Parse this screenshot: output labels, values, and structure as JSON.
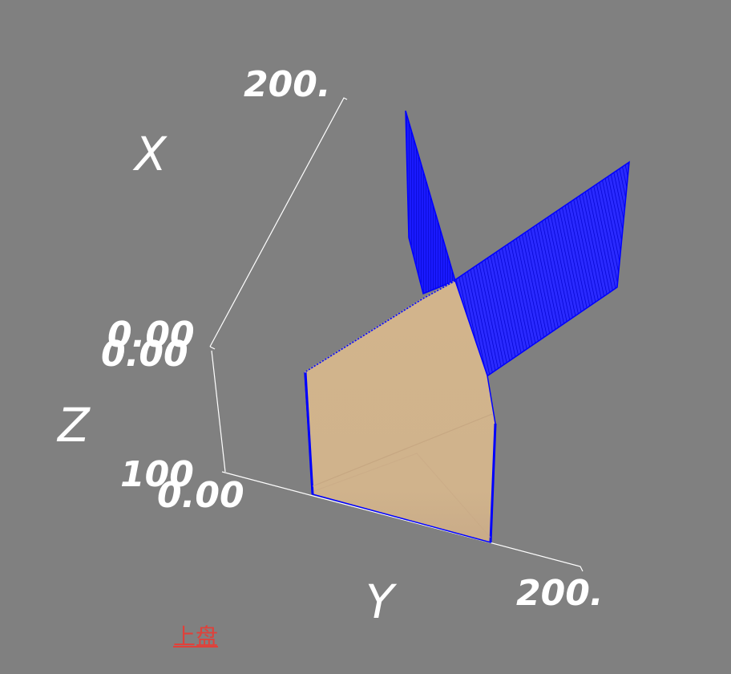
{
  "view": {
    "background": "#808080",
    "hanging_wall_color": "#0000ff",
    "footwall_color": "#d2b48c",
    "axis_color": "#ffffff"
  },
  "axes": {
    "x": {
      "label": "X",
      "min_label": "0.00",
      "max_label": "200."
    },
    "y": {
      "label": "Y",
      "min_label": "0.00",
      "max_label": "200."
    },
    "z": {
      "label": "Z",
      "min_label": "0.00",
      "max_label": "100"
    }
  },
  "legend": {
    "link_label": "上盘",
    "link_color": "#e0413a"
  }
}
